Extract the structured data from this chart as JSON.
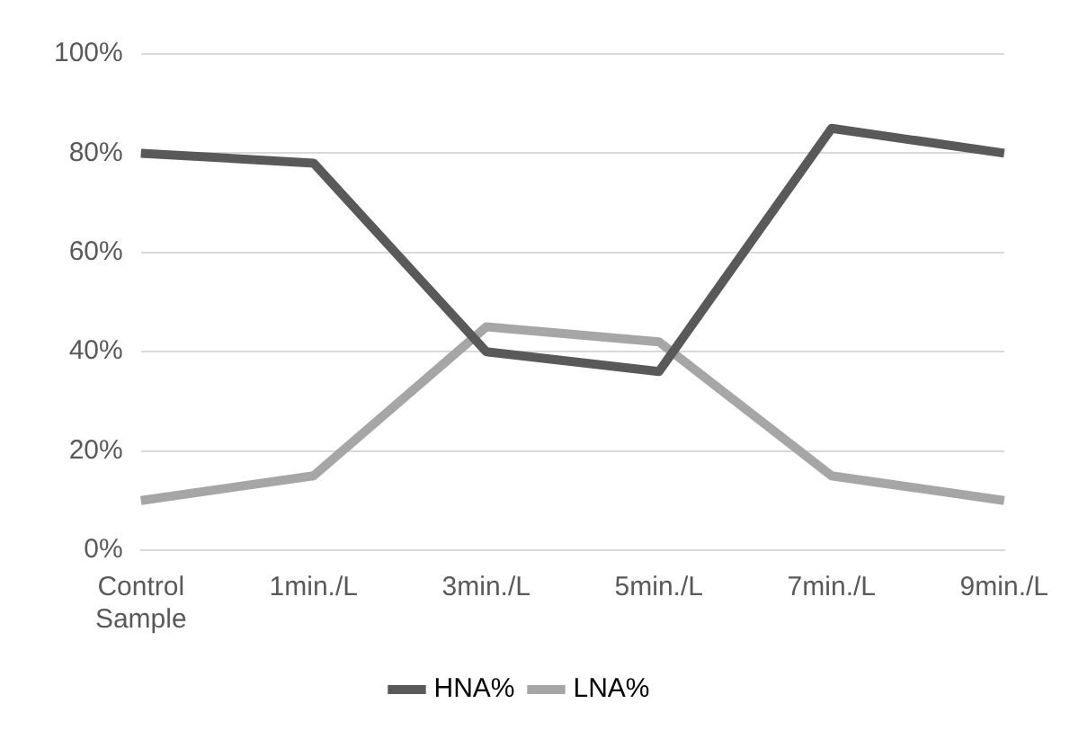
{
  "chart_data": {
    "type": "line",
    "categories": [
      "Control Sample",
      "1min./L",
      "3min./L",
      "5min./L",
      "7min./L",
      "9min./L"
    ],
    "series": [
      {
        "name": "HNA%",
        "color": "#595959",
        "values": [
          80,
          78,
          40,
          36,
          85,
          80
        ]
      },
      {
        "name": "LNA%",
        "color": "#a6a6a6",
        "values": [
          10,
          15,
          45,
          42,
          15,
          10
        ]
      }
    ],
    "ylim": [
      0,
      100
    ],
    "yticks": [
      {
        "value": 0,
        "label": "0%"
      },
      {
        "value": 20,
        "label": "20%"
      },
      {
        "value": 40,
        "label": "40%"
      },
      {
        "value": 60,
        "label": "60%"
      },
      {
        "value": 80,
        "label": "80%"
      },
      {
        "value": 100,
        "label": "100%"
      }
    ],
    "grid": "y",
    "legend": "bottom",
    "marker": "none",
    "line_style": "solid"
  }
}
